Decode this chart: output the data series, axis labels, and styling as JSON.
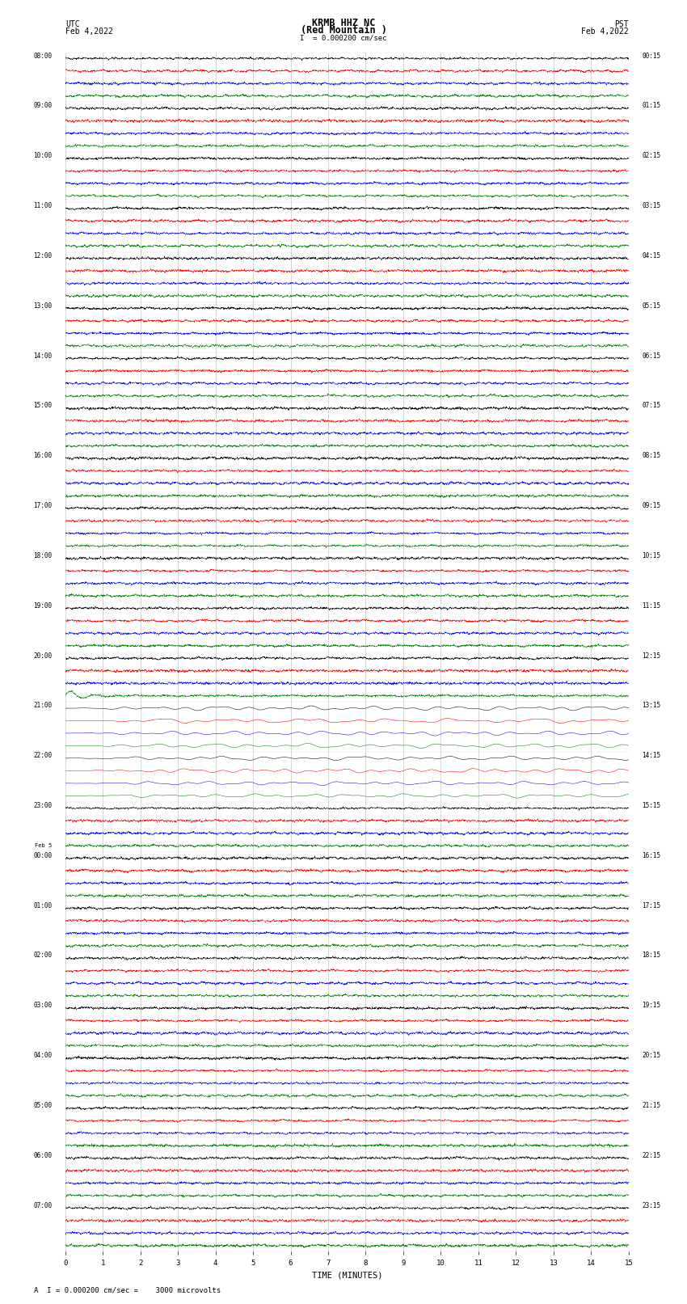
{
  "title_line1": "KRMB HHZ NC",
  "title_line2": "(Red Mountain )",
  "scale_text": "= 0.000200 cm/sec",
  "footer_text": "A  I = 0.000200 cm/sec =    3000 microvolts",
  "utc_label": "UTC",
  "utc_date": "Feb 4,2022",
  "pst_label": "PST",
  "pst_date": "Feb 4,2022",
  "xlabel": "TIME (MINUTES)",
  "bg_color": "#ffffff",
  "trace_colors": [
    "#000000",
    "#ff0000",
    "#0000ff",
    "#008000"
  ],
  "num_rows": 24,
  "traces_per_row": 4,
  "minutes_per_row": 15,
  "x_ticks": [
    0,
    1,
    2,
    3,
    4,
    5,
    6,
    7,
    8,
    9,
    10,
    11,
    12,
    13,
    14,
    15
  ],
  "left_labels": [
    "08:00",
    "09:00",
    "10:00",
    "11:00",
    "12:00",
    "13:00",
    "14:00",
    "15:00",
    "16:00",
    "17:00",
    "18:00",
    "19:00",
    "20:00",
    "21:00",
    "22:00",
    "23:00",
    "00:00",
    "01:00",
    "02:00",
    "03:00",
    "04:00",
    "05:00",
    "06:00",
    "07:00"
  ],
  "right_labels": [
    "00:15",
    "01:15",
    "02:15",
    "03:15",
    "04:15",
    "05:15",
    "06:15",
    "07:15",
    "08:15",
    "09:15",
    "10:15",
    "11:15",
    "12:15",
    "13:15",
    "14:15",
    "15:15",
    "16:15",
    "17:15",
    "18:15",
    "19:15",
    "20:15",
    "21:15",
    "22:15",
    "23:15"
  ],
  "feb5_row": 16,
  "eq_rows": [
    13,
    14
  ],
  "eq_row_green_spike": 12
}
